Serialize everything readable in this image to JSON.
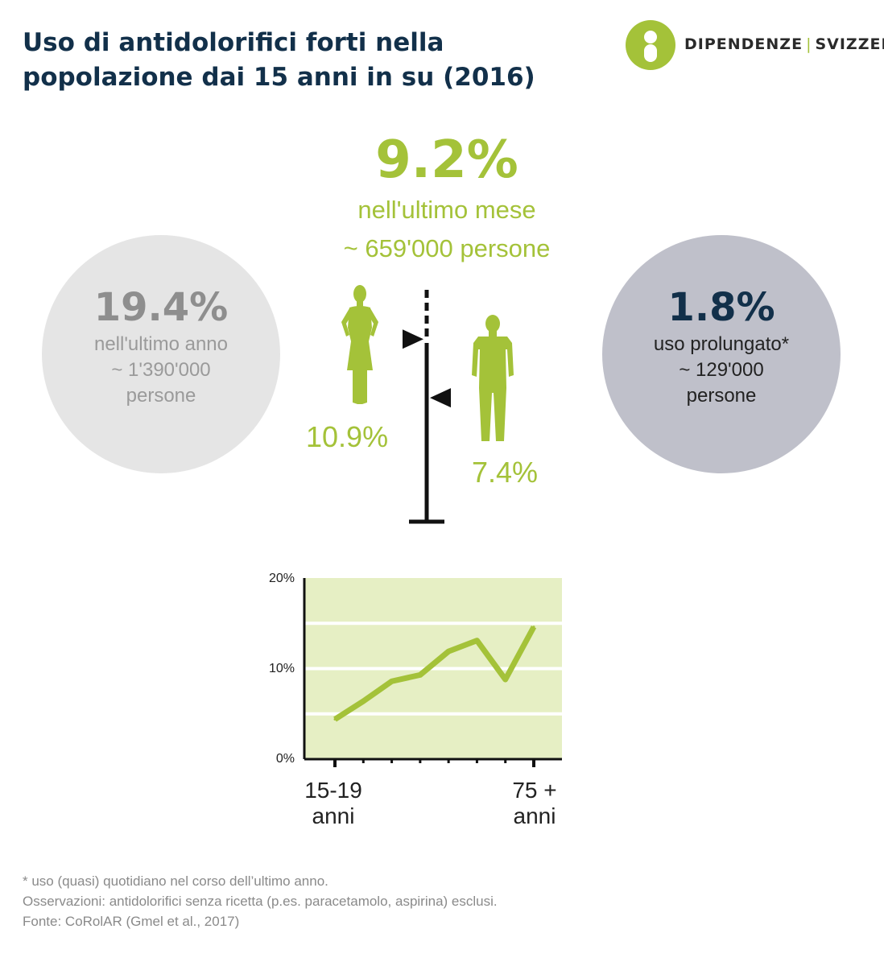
{
  "title": "Uso di antidolorifici forti nella popolazione dai 15 anni in su (2016)",
  "logo": {
    "part1": "DIPENDENZE",
    "separator": "|",
    "part2": "SVIZZERA"
  },
  "center": {
    "value": "9.2%",
    "line1": "nell'ultimo mese",
    "line2": "~ 659'000 persone"
  },
  "left_circle": {
    "value": "19.4%",
    "line1": "nell'ultimo anno",
    "line2": "~ 1'390'000",
    "line3": "persone"
  },
  "right_circle": {
    "value": "1.8%",
    "line1": "uso prolungato*",
    "line2": "~ 129'000",
    "line3": "persone"
  },
  "gender": {
    "women_label": "10.9%",
    "men_label": "7.4%",
    "women_value": 10.9,
    "men_value": 7.4
  },
  "colors": {
    "accent": "#a4c239",
    "title": "#12304a",
    "grey_circle": "#e5e5e5",
    "blue_circle": "#bfc0ca",
    "chart_bg": "#e6efc4"
  },
  "icons": [
    "woman-icon",
    "man-icon",
    "logo-icon"
  ],
  "chart_data": {
    "type": "line",
    "y_ticks": [
      "20%",
      "10%",
      "0%"
    ],
    "ylim": [
      0,
      20
    ],
    "x_labels": {
      "first_line1": "15-19",
      "first_line2": "anni",
      "last_line1": "75 +",
      "last_line2": "anni"
    },
    "values": [
      4.4,
      6.4,
      8.6,
      9.3,
      11.9,
      13.1,
      8.8,
      14.6
    ],
    "grid": true
  },
  "footnotes": {
    "line1": "* uso (quasi) quotidiano nel corso dell’ultimo anno.",
    "line2": "Osservazioni: antidolorifici senza ricetta (p.es. paracetamolo, aspirina) esclusi.",
    "line3": "Fonte: CoRolAR (Gmel et al., 2017)"
  }
}
